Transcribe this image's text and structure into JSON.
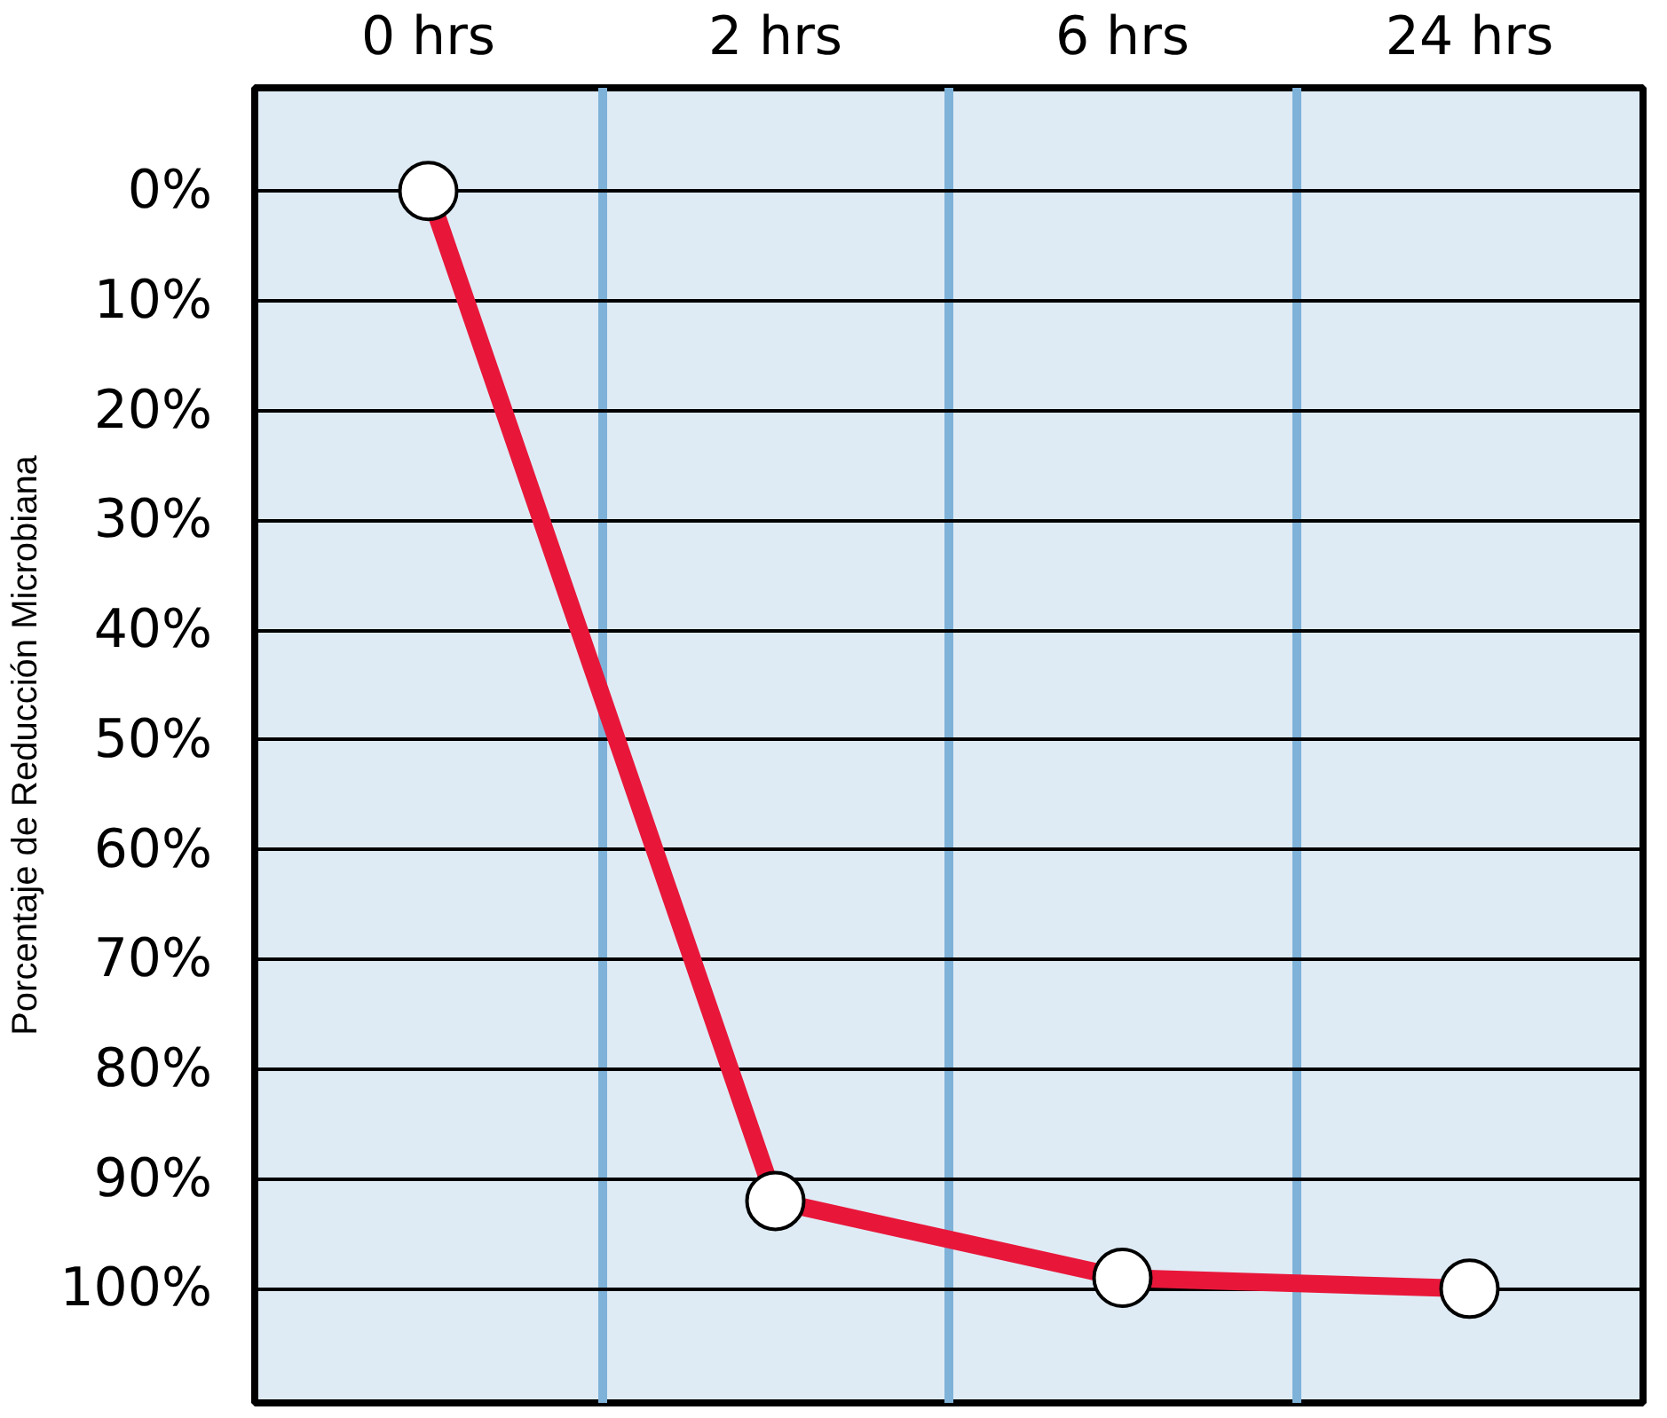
{
  "chart_data": {
    "type": "line",
    "ylabel": "Porcentaje de Reducción Microbiana",
    "categories": [
      "0 hrs",
      "2 hrs",
      "6 hrs",
      "24 hrs"
    ],
    "series": [
      {
        "color": "#e8173a",
        "values": [
          0,
          92,
          99,
          100
        ]
      }
    ],
    "ylim": [
      110.4,
      -9.4
    ],
    "yticks": [
      {
        "value": 0,
        "label": "0%"
      },
      {
        "value": 10,
        "label": "10%"
      },
      {
        "value": 20,
        "label": "20%"
      },
      {
        "value": 30,
        "label": "30%"
      },
      {
        "value": 40,
        "label": "40%"
      },
      {
        "value": 50,
        "label": "50%"
      },
      {
        "value": 60,
        "label": "60%"
      },
      {
        "value": 70,
        "label": "70%"
      },
      {
        "value": 80,
        "label": "80%"
      },
      {
        "value": 90,
        "label": "90%"
      },
      {
        "value": 100,
        "label": "100%"
      }
    ],
    "grid": true,
    "marker": "circle",
    "line_style": "solid"
  }
}
